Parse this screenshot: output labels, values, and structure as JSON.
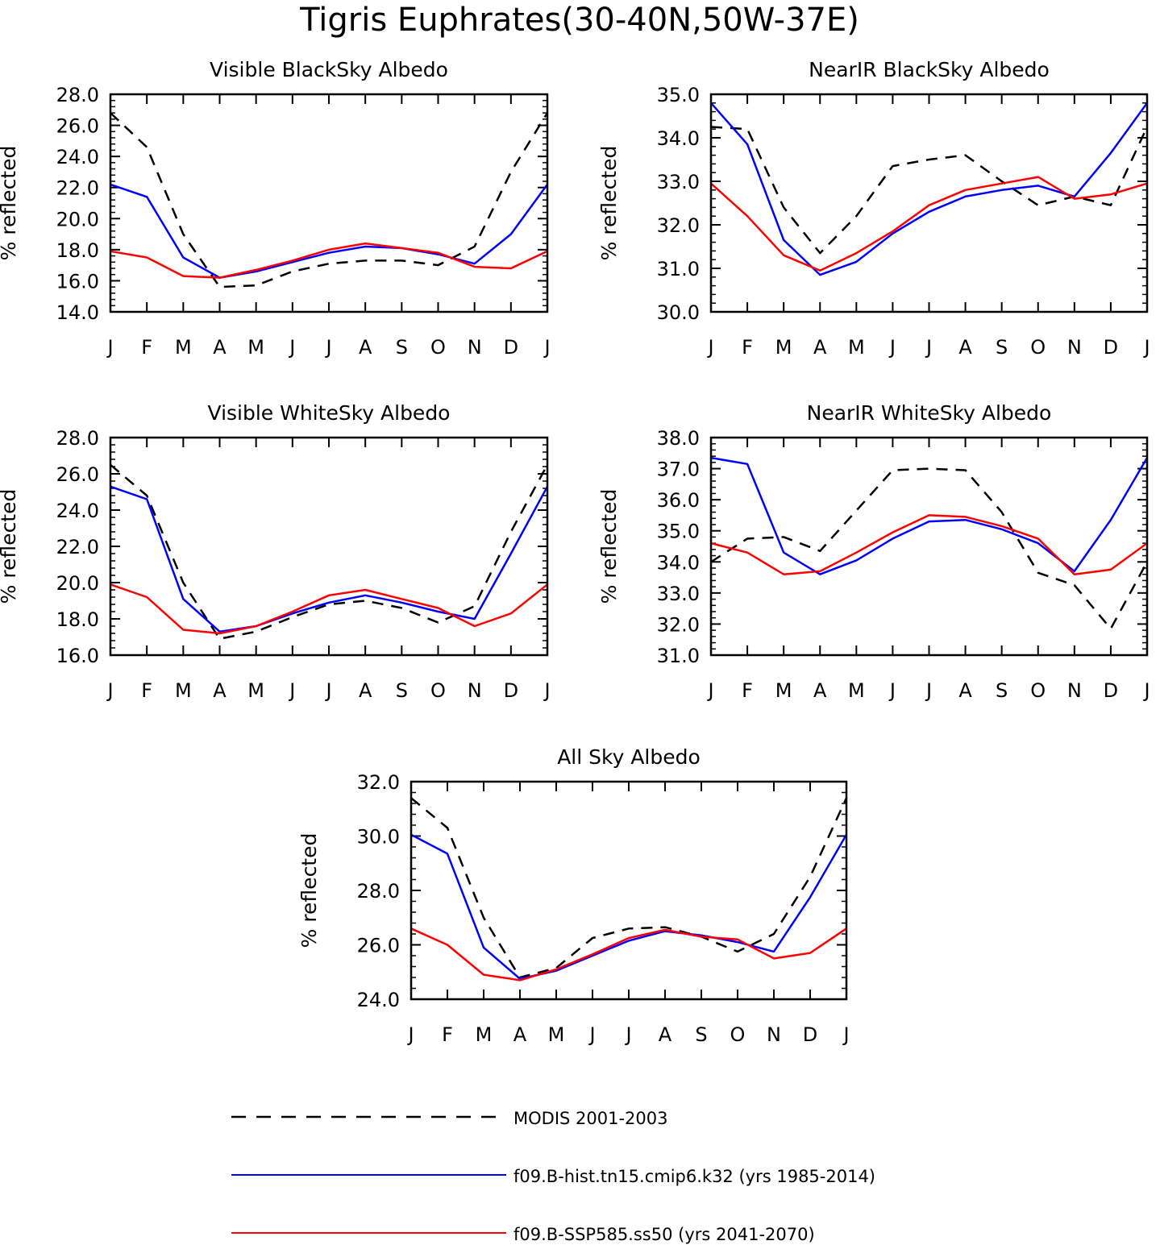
{
  "title": "Tigris Euphrates(30-40N,50W-37E)",
  "legend": [
    {
      "label": "MODIS 2001-2003",
      "color": "#000000",
      "dashed": true
    },
    {
      "label": "f09.B-hist.tn15.cmip6.k32 (yrs 1985-2014)",
      "color": "#0000ff",
      "dashed": false
    },
    {
      "label": "f09.B-SSP585.ss50 (yrs 2041-2070)",
      "color": "#ff0000",
      "dashed": false
    }
  ],
  "chart_data": [
    {
      "type": "line",
      "title": "Visible BlackSky Albedo",
      "ylabel": "% reflected",
      "categories": [
        "J",
        "F",
        "M",
        "A",
        "M",
        "J",
        "J",
        "A",
        "S",
        "O",
        "N",
        "D",
        "J"
      ],
      "ylim": [
        14,
        28
      ],
      "yticks": [
        "14.0",
        "16.0",
        "18.0",
        "20.0",
        "22.0",
        "24.0",
        "26.0",
        "28.0"
      ],
      "series": [
        {
          "name": "MODIS 2001-2003",
          "values": [
            26.8,
            24.6,
            19.0,
            15.6,
            15.7,
            16.6,
            17.1,
            17.3,
            17.3,
            17.0,
            18.2,
            23.0,
            26.8
          ]
        },
        {
          "name": "f09.B-hist.tn15.cmip6.k32 (yrs 1985-2014)",
          "values": [
            22.2,
            21.4,
            17.5,
            16.2,
            16.6,
            17.2,
            17.8,
            18.2,
            18.1,
            17.7,
            17.1,
            19.0,
            22.2
          ]
        },
        {
          "name": "f09.B-SSP585.ss50 (yrs 2041-2070)",
          "values": [
            17.9,
            17.5,
            16.3,
            16.2,
            16.7,
            17.3,
            18.0,
            18.4,
            18.1,
            17.8,
            16.9,
            16.8,
            17.9
          ]
        }
      ]
    },
    {
      "type": "line",
      "title": "NearIR BlackSky Albedo",
      "ylabel": "% reflected",
      "categories": [
        "J",
        "F",
        "M",
        "A",
        "M",
        "J",
        "J",
        "A",
        "S",
        "O",
        "N",
        "D",
        "J"
      ],
      "ylim": [
        30,
        35
      ],
      "yticks": [
        "30.0",
        "31.0",
        "32.0",
        "33.0",
        "34.0",
        "35.0"
      ],
      "series": [
        {
          "name": "MODIS 2001-2003",
          "values": [
            34.25,
            34.2,
            32.4,
            31.35,
            32.2,
            33.35,
            33.5,
            33.6,
            33.0,
            32.45,
            32.65,
            32.45,
            34.25
          ]
        },
        {
          "name": "f09.B-hist.tn15.cmip6.k32 (yrs 1985-2014)",
          "values": [
            34.8,
            33.85,
            31.65,
            30.85,
            31.15,
            31.8,
            32.3,
            32.65,
            32.8,
            32.9,
            32.65,
            33.65,
            34.8
          ]
        },
        {
          "name": "f09.B-SSP585.ss50 (yrs 2041-2070)",
          "values": [
            32.95,
            32.2,
            31.3,
            30.95,
            31.35,
            31.85,
            32.45,
            32.8,
            32.95,
            33.1,
            32.6,
            32.7,
            32.95
          ]
        }
      ]
    },
    {
      "type": "line",
      "title": "Visible WhiteSky Albedo",
      "ylabel": "% reflected",
      "categories": [
        "J",
        "F",
        "M",
        "A",
        "M",
        "J",
        "J",
        "A",
        "S",
        "O",
        "N",
        "D",
        "J"
      ],
      "ylim": [
        16,
        28
      ],
      "yticks": [
        "16.0",
        "18.0",
        "20.0",
        "22.0",
        "24.0",
        "26.0",
        "28.0"
      ],
      "series": [
        {
          "name": "MODIS 2001-2003",
          "values": [
            26.5,
            24.8,
            20.0,
            16.9,
            17.3,
            18.1,
            18.8,
            19.0,
            18.6,
            17.8,
            18.7,
            22.8,
            26.5
          ]
        },
        {
          "name": "f09.B-hist.tn15.cmip6.k32 (yrs 1985-2014)",
          "values": [
            25.3,
            24.6,
            19.1,
            17.3,
            17.6,
            18.3,
            18.9,
            19.3,
            18.9,
            18.4,
            18.0,
            21.6,
            25.3
          ]
        },
        {
          "name": "f09.B-SSP585.ss50 (yrs 2041-2070)",
          "values": [
            19.9,
            19.2,
            17.4,
            17.2,
            17.6,
            18.4,
            19.3,
            19.6,
            19.1,
            18.6,
            17.6,
            18.3,
            19.9
          ]
        }
      ]
    },
    {
      "type": "line",
      "title": "NearIR WhiteSky Albedo",
      "ylabel": "% reflected",
      "categories": [
        "J",
        "F",
        "M",
        "A",
        "M",
        "J",
        "J",
        "A",
        "S",
        "O",
        "N",
        "D",
        "J"
      ],
      "ylim": [
        31,
        38
      ],
      "yticks": [
        "31.0",
        "32.0",
        "33.0",
        "34.0",
        "35.0",
        "36.0",
        "37.0",
        "38.0"
      ],
      "series": [
        {
          "name": "MODIS 2001-2003",
          "values": [
            34.0,
            34.75,
            34.8,
            34.35,
            35.65,
            36.95,
            37.0,
            36.95,
            35.6,
            33.65,
            33.25,
            31.85,
            34.0
          ]
        },
        {
          "name": "f09.B-hist.tn15.cmip6.k32 (yrs 1985-2014)",
          "values": [
            37.35,
            37.15,
            34.3,
            33.6,
            34.05,
            34.75,
            35.3,
            35.35,
            35.05,
            34.6,
            33.7,
            35.35,
            37.35
          ]
        },
        {
          "name": "f09.B-SSP585.ss50 (yrs 2041-2070)",
          "values": [
            34.6,
            34.3,
            33.6,
            33.7,
            34.3,
            34.95,
            35.5,
            35.45,
            35.15,
            34.75,
            33.6,
            33.75,
            34.6
          ]
        }
      ]
    },
    {
      "type": "line",
      "title": "All Sky Albedo",
      "ylabel": "% reflected",
      "categories": [
        "J",
        "F",
        "M",
        "A",
        "M",
        "J",
        "J",
        "A",
        "S",
        "O",
        "N",
        "D",
        "J"
      ],
      "ylim": [
        24,
        32
      ],
      "yticks": [
        "24.0",
        "26.0",
        "28.0",
        "30.0",
        "32.0"
      ],
      "series": [
        {
          "name": "MODIS 2001-2003",
          "values": [
            31.4,
            30.3,
            27.0,
            24.8,
            25.15,
            26.25,
            26.6,
            26.65,
            26.3,
            25.75,
            26.4,
            28.5,
            31.4
          ]
        },
        {
          "name": "f09.B-hist.tn15.cmip6.k32 (yrs 1985-2014)",
          "values": [
            30.05,
            29.35,
            25.9,
            24.75,
            25.05,
            25.6,
            26.15,
            26.5,
            26.35,
            26.1,
            25.75,
            27.75,
            30.05
          ]
        },
        {
          "name": "f09.B-SSP585.ss50 (yrs 2041-2070)",
          "values": [
            26.6,
            26.0,
            24.9,
            24.7,
            25.1,
            25.65,
            26.25,
            26.55,
            26.3,
            26.2,
            25.5,
            25.7,
            26.6
          ]
        }
      ]
    }
  ]
}
